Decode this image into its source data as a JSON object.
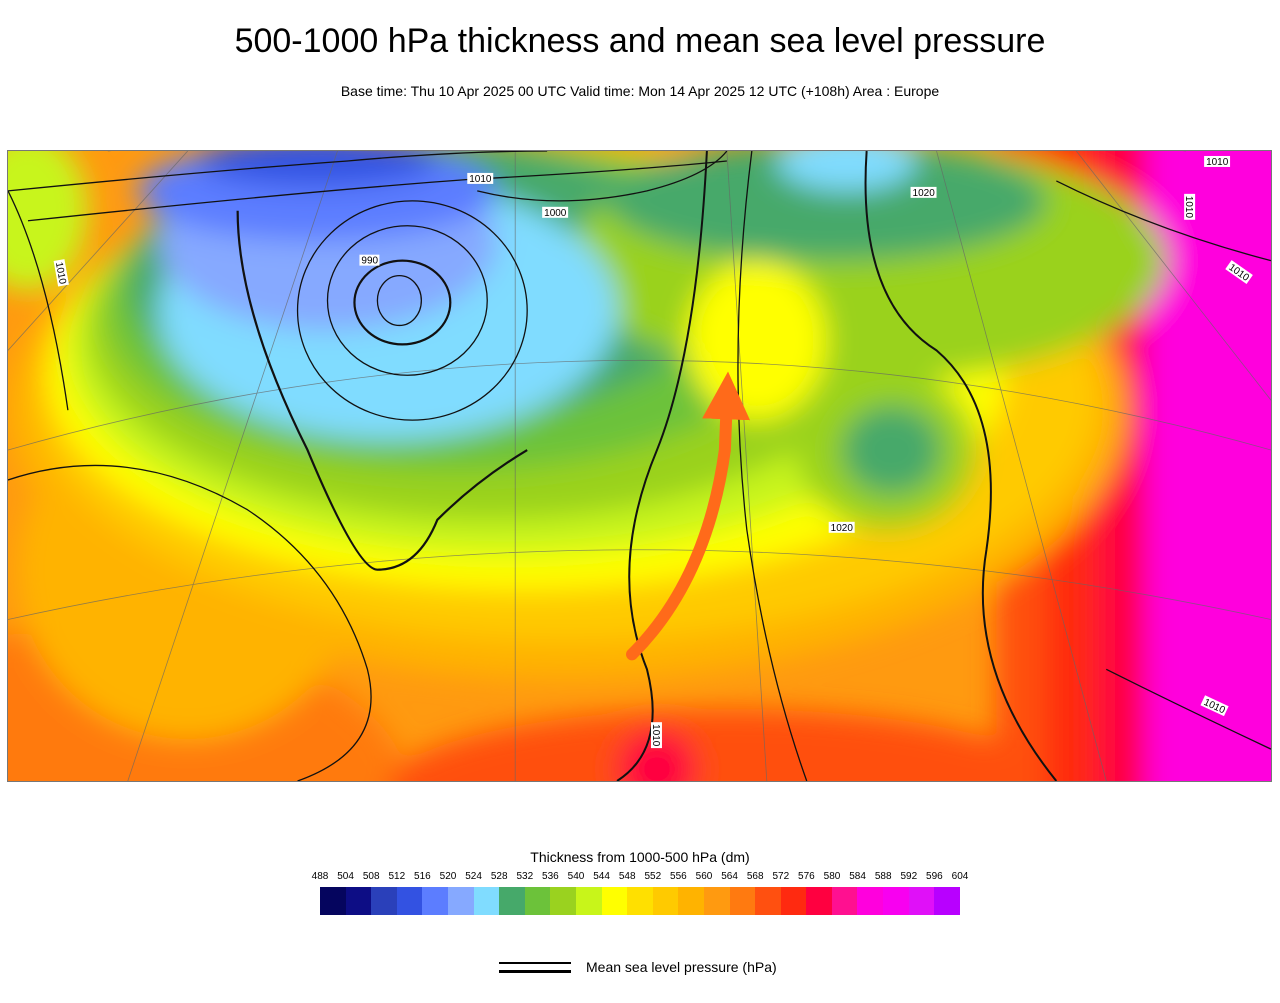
{
  "title": "500-1000 hPa thickness and mean sea level pressure",
  "subtitle": "Base time: Thu 10 Apr 2025 00 UTC Valid time: Mon 14 Apr 2025 12 UTC (+108h) Area : Europe",
  "map": {
    "contour_labels": [
      "1010",
      "1000",
      "990",
      "1010",
      "1020",
      "1010",
      "1020",
      "1010",
      "1010",
      "1010",
      "1010"
    ],
    "arrow_color": "#ff6a1a",
    "arrow_icon": "arrow-up-curved"
  },
  "colorbar": {
    "title": "Thickness from 1000-500 hPa (dm)",
    "labels": [
      "488",
      "504",
      "508",
      "512",
      "516",
      "520",
      "524",
      "528",
      "532",
      "536",
      "540",
      "544",
      "548",
      "552",
      "556",
      "560",
      "564",
      "568",
      "572",
      "576",
      "580",
      "584",
      "588",
      "592",
      "596",
      "604"
    ],
    "colors": [
      "#05055e",
      "#0d0d85",
      "#2a40ba",
      "#3352e2",
      "#5c7dff",
      "#86a9ff",
      "#80dcff",
      "#46a96a",
      "#6cc23a",
      "#9ad21f",
      "#c8f51a",
      "#ffff00",
      "#ffe000",
      "#ffca00",
      "#ffb300",
      "#ff9a10",
      "#ff7a10",
      "#ff5010",
      "#ff2a10",
      "#ff0040",
      "#ff1090",
      "#ff00dd",
      "#f800f0",
      "#e010f8",
      "#b800ff"
    ]
  },
  "legend": {
    "label": "Mean sea level pressure (hPa)"
  }
}
